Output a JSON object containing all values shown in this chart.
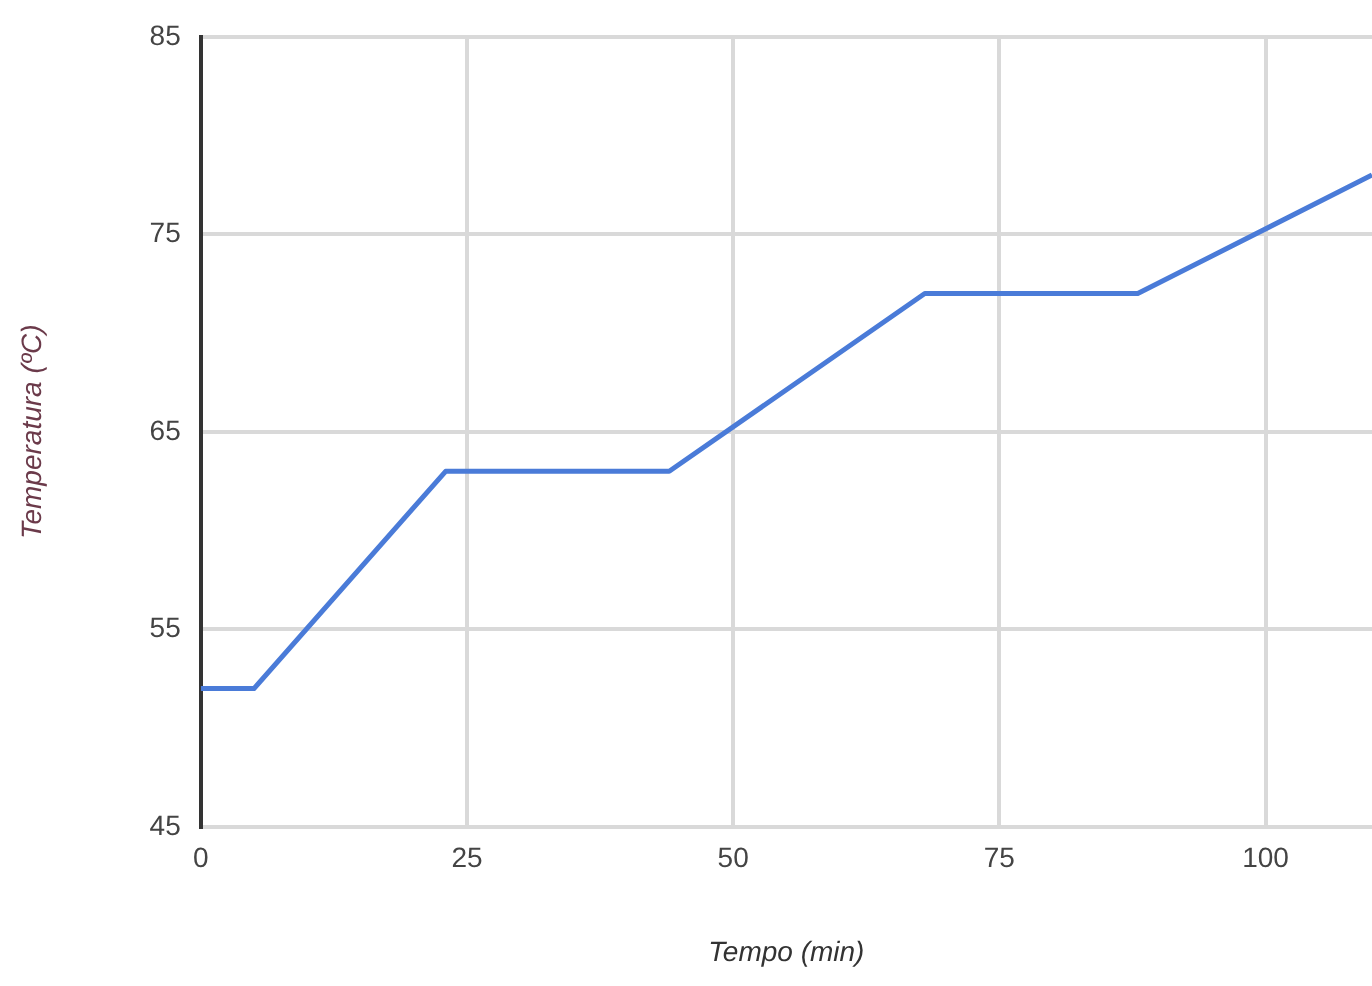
{
  "chart_data": {
    "type": "line",
    "xlabel": "Tempo (min)",
    "ylabel": "Temperatura (ºC)",
    "x": [
      0,
      5,
      23,
      44,
      68,
      88,
      110
    ],
    "series": [
      {
        "color": "#4a7bd8",
        "values": [
          52,
          52,
          63,
          63,
          72,
          72,
          78
        ]
      }
    ],
    "xlim": [
      0,
      110
    ],
    "xticks": [
      0,
      25,
      50,
      75,
      100
    ],
    "ylim": [
      45,
      85
    ],
    "yticks": [
      45,
      55,
      65,
      75,
      85
    ],
    "grid": true,
    "legend": false,
    "marker": "none",
    "line_style": "solid"
  }
}
